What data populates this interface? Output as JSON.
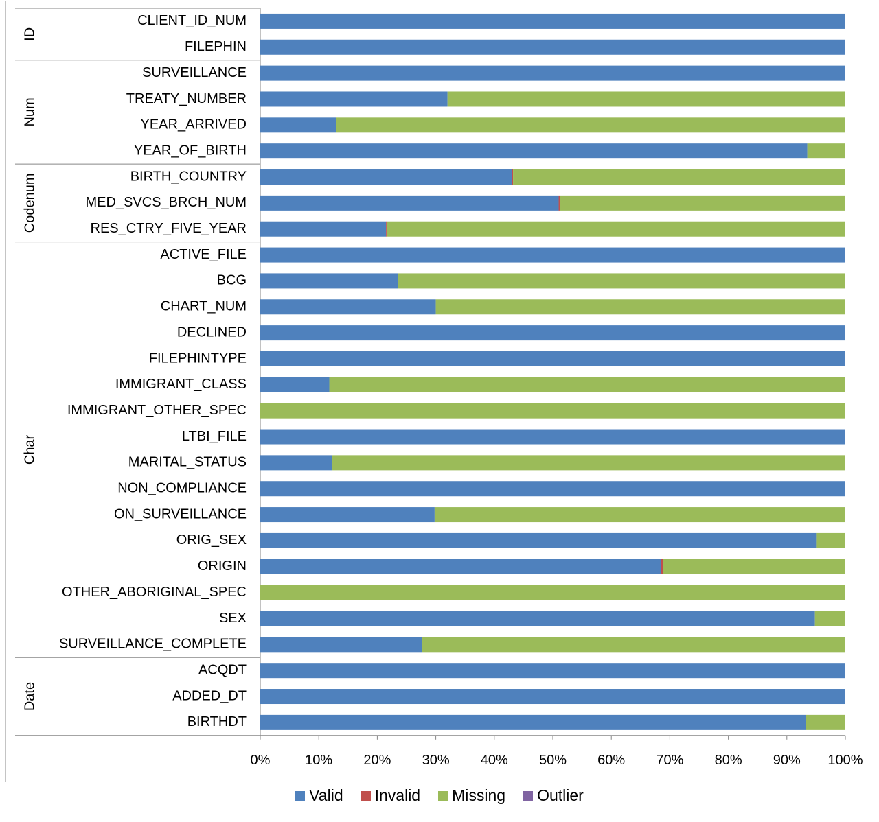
{
  "chart_data": {
    "type": "bar",
    "orientation": "horizontal",
    "stacked": true,
    "percent": true,
    "xlim": [
      0,
      100
    ],
    "x_ticks": [
      "0%",
      "10%",
      "20%",
      "30%",
      "40%",
      "50%",
      "60%",
      "70%",
      "80%",
      "90%",
      "100%"
    ],
    "groups": [
      {
        "name": "ID",
        "categories": [
          "CLIENT_ID_NUM",
          "FILEPHIN"
        ]
      },
      {
        "name": "Num",
        "categories": [
          "SURVEILLANCE",
          "TREATY_NUMBER",
          "YEAR_ARRIVED",
          "YEAR_OF_BIRTH"
        ]
      },
      {
        "name": "Codenum",
        "categories": [
          "BIRTH_COUNTRY",
          "MED_SVCS_BRCH_NUM",
          "RES_CTRY_FIVE_YEAR"
        ]
      },
      {
        "name": "Char",
        "categories": [
          "ACTIVE_FILE",
          "BCG",
          "CHART_NUM",
          "DECLINED",
          "FILEPHINTYPE",
          "IMMIGRANT_CLASS",
          "IMMIGRANT_OTHER_SPEC",
          "LTBI_FILE",
          "MARITAL_STATUS",
          "NON_COMPLIANCE",
          "ON_SURVEILLANCE",
          "ORIG_SEX",
          "ORIGIN",
          "OTHER_ABORIGINAL_SPEC",
          "SEX",
          "SURVEILLANCE_COMPLETE"
        ]
      },
      {
        "name": "Date",
        "categories": [
          "ACQDT",
          "ADDED_DT",
          "BIRTHDT"
        ]
      }
    ],
    "series": [
      {
        "name": "Valid",
        "color": "#4f81bd",
        "values": [
          100,
          100,
          100,
          32,
          13,
          93.5,
          43,
          51,
          21.5,
          100,
          23.5,
          30,
          100,
          100,
          11.8,
          0,
          100,
          12.3,
          100,
          29.8,
          95,
          68.5,
          0,
          94.8,
          27.7,
          100,
          100,
          93.3
        ]
      },
      {
        "name": "Invalid",
        "color": "#c0504d",
        "values": [
          0,
          0,
          0,
          0,
          0,
          0,
          0.2,
          0.2,
          0.2,
          0,
          0,
          0,
          0,
          0,
          0,
          0,
          0,
          0,
          0,
          0,
          0,
          0.3,
          0,
          0,
          0,
          0,
          0,
          0
        ]
      },
      {
        "name": "Missing",
        "color": "#9bbb59",
        "values": [
          0,
          0,
          0,
          68,
          87,
          6.5,
          56.8,
          48.8,
          78.3,
          0,
          76.5,
          70,
          0,
          0,
          88.2,
          100,
          0,
          87.7,
          0,
          70.2,
          5,
          31.2,
          100,
          5.2,
          72.3,
          0,
          0,
          6.7
        ]
      },
      {
        "name": "Outlier",
        "color": "#8064a2",
        "values": [
          0,
          0,
          0,
          0,
          0,
          0,
          0,
          0,
          0,
          0,
          0,
          0,
          0,
          0,
          0,
          0,
          0,
          0,
          0,
          0,
          0,
          0,
          0,
          0,
          0,
          0,
          0,
          0
        ]
      }
    ],
    "legend_position": "bottom",
    "grid": false,
    "title": "",
    "xlabel": "",
    "ylabel": ""
  }
}
